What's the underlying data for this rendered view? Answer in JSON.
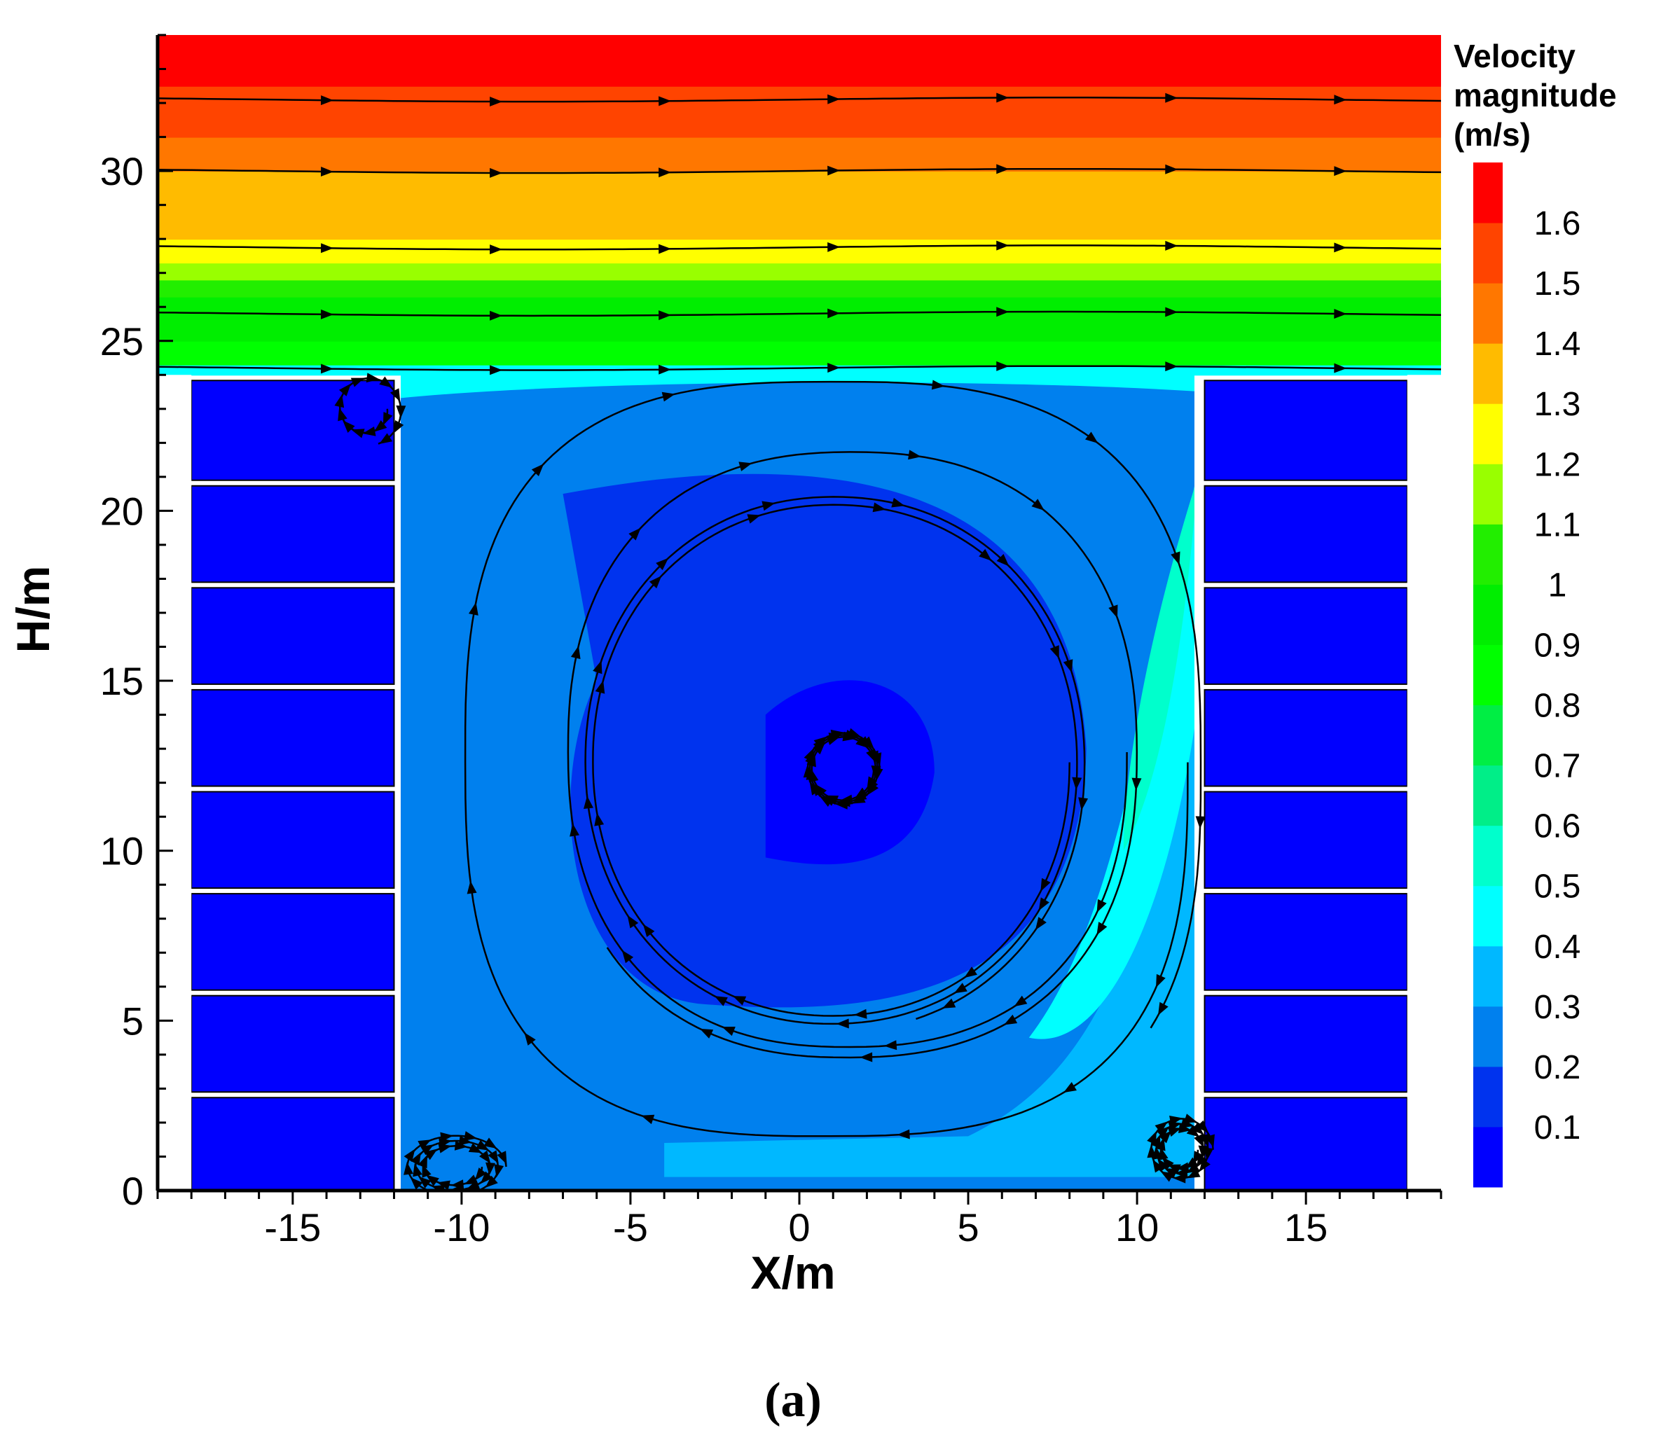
{
  "chart_data": {
    "type": "heatmap",
    "xlabel": "X/m",
    "ylabel": "H/m",
    "xlim": [
      -19,
      19
    ],
    "ylim": [
      0,
      34
    ],
    "x_ticks": [
      -15,
      -10,
      -5,
      0,
      5,
      10,
      15
    ],
    "y_ticks": [
      0,
      5,
      10,
      15,
      20,
      25,
      30
    ],
    "colorbar": {
      "title_lines": [
        "Velocity",
        "magnitude",
        "(m/s)"
      ],
      "levels": [
        "0.1",
        "0.2",
        "0.3",
        "0.4",
        "0.5",
        "0.6",
        "0.7",
        "0.8",
        "0.9",
        "1",
        "1.1",
        "1.2",
        "1.3",
        "1.4",
        "1.5",
        "1.6"
      ],
      "colors": [
        "#0000ff",
        "#0033ee",
        "#0080ee",
        "#00b8ff",
        "#00ffff",
        "#00ffcc",
        "#00ee88",
        "#00ee44",
        "#00ff00",
        "#00ee00",
        "#22ee00",
        "#99ff00",
        "#ffff00",
        "#ffbb00",
        "#ff7700",
        "#ff4400",
        "#ff0000"
      ]
    },
    "regions": {
      "canyon": {
        "x": [
          -12,
          12
        ],
        "y": [
          0,
          24
        ]
      },
      "buildings_left": {
        "x": [
          -18,
          -12
        ],
        "y": [
          0,
          24
        ]
      },
      "buildings_right": {
        "x": [
          12,
          18
        ],
        "y": [
          0,
          24
        ]
      },
      "building_floor_gaps_y": [
        2.9,
        5.9,
        8.9,
        11.9,
        14.9,
        17.9,
        20.9
      ],
      "vortex_center": {
        "x": 1.3,
        "y": 12.3
      }
    },
    "free_stream_bands": [
      {
        "y_from": 24.0,
        "y_to": 24.3,
        "level": 4
      },
      {
        "y_from": 24.3,
        "y_to": 25.0,
        "level": 8
      },
      {
        "y_from": 25.0,
        "y_to": 26.3,
        "level": 9
      },
      {
        "y_from": 26.3,
        "y_to": 26.8,
        "level": 10
      },
      {
        "y_from": 26.8,
        "y_to": 27.3,
        "level": 11
      },
      {
        "y_from": 27.3,
        "y_to": 28.0,
        "level": 12
      },
      {
        "y_from": 28.0,
        "y_to": 29.0,
        "level": 13
      },
      {
        "y_from": 29.0,
        "y_to": 30.0,
        "level": 13
      },
      {
        "y_from": 30.0,
        "y_to": 31.0,
        "level": 14
      },
      {
        "y_from": 31.0,
        "y_to": 32.5,
        "level": 15
      },
      {
        "y_from": 32.5,
        "y_to": 34.0,
        "level": 16
      }
    ],
    "free_streamlines_y": [
      32.1,
      30.0,
      27.75,
      25.8,
      24.2
    ]
  },
  "caption": "(a)"
}
